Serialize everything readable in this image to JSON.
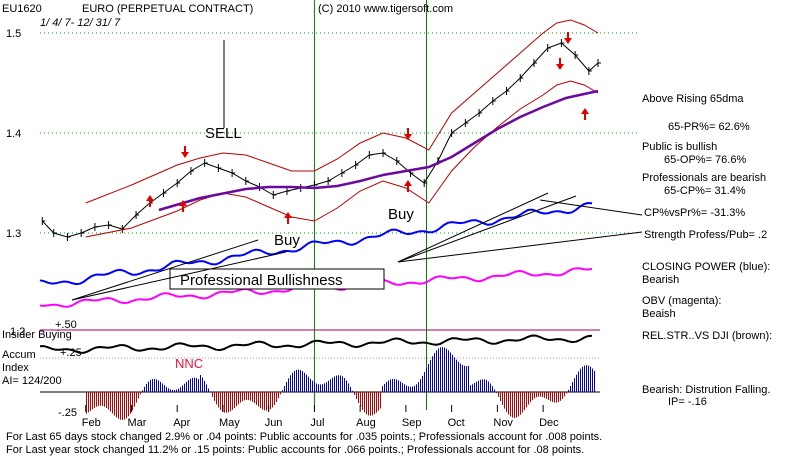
{
  "header": {
    "symbol": "EU1620",
    "name": "EURO  (PERPETUAL CONTRACT)",
    "copyright": "(C) 2010 www.tigersoft.com",
    "date_range": "1/ 4/ 7- 12/ 31/ 7"
  },
  "colors": {
    "price": "#000000",
    "bands": "#b80000",
    "ma65": "#6a0aa0",
    "closing_power": "#0000ff",
    "obv": "#ff00ff",
    "rel_str": "#000000",
    "accum_pos": "#0000c0",
    "accum_neg": "#c00000",
    "signal_green": "#008000",
    "grid": "#00a000",
    "arrow_red": "#e00000"
  },
  "annotations": {
    "sell": "SELL",
    "buy1": "Buy",
    "buy2": "Buy",
    "professional_bullishness": "Professional Bullishness",
    "nnc": "NNC",
    "insider_buying": "Insider Buying",
    "accum_index": [
      "Accum",
      "Index"
    ],
    "ai": "AI= 124/200"
  },
  "right_panel": {
    "above_rising": "Above Rising 65dma",
    "pr": "65-PR%= 62.6%",
    "public_bullish": "Public is bullish",
    "op": "65-OP%= 76.6%",
    "pros_bearish": "Professionals are bearish",
    "cp": "65-CP%= 31.4%",
    "cp_vs_pr": "CP%vsPr%= -31.3%",
    "strength": "Strength Profess/Pub= .2",
    "closing_power": "CLOSING POWER (blue):",
    "closing_power_state": "Bearish",
    "obv": "OBV (magenta):",
    "obv_state": "Beaish",
    "rel_str": "REL.STR..VS DJI (brown):",
    "bearish_dist": "Bearish: Distrution Falling.",
    "ip": "IP= -.16"
  },
  "footer": {
    "line1": "For Last 65 days stock changed  2.9% or  .04 points:  Public accounts for  .035 points.;  Professionals account for  .008 points.",
    "line2": "For Last year stock changed  11.2% or  .15 points:  Public accounts for  .066 points.;  Professionals account for  .08 points."
  },
  "chart_data": {
    "type": "line",
    "x_tick_labels": [
      "Feb",
      "Mar",
      "Apr",
      "May",
      "Jun",
      "Jul",
      "Aug",
      "Sep",
      "Oct",
      "Nov",
      "Dec"
    ],
    "price_axis": {
      "ticks": [
        1.3,
        1.4,
        1.5
      ],
      "tick_labels": [
        "1.3",
        "1.4",
        "1.5"
      ],
      "range": [
        1.25,
        1.52
      ]
    },
    "accum_axis": {
      "ticks": [
        0.5,
        0.25,
        -0.25
      ],
      "tick_labels": [
        "+.50",
        "+.25",
        "-.25"
      ]
    },
    "rel_str_label": "1.2",
    "signals": {
      "sell_month": 4.95,
      "buy_months": [
        6.0,
        8.45
      ]
    },
    "series": [
      {
        "key": "price",
        "x": [
          0.05,
          0.3,
          0.6,
          0.9,
          1.2,
          1.5,
          1.8,
          2.1,
          2.4,
          2.7,
          3.0,
          3.3,
          3.6,
          3.9,
          4.2,
          4.5,
          4.8,
          5.1,
          5.4,
          5.7,
          6.0,
          6.3,
          6.6,
          6.9,
          7.2,
          7.5,
          7.8,
          8.1,
          8.4,
          8.7,
          9.0,
          9.3,
          9.6,
          9.9,
          10.2,
          10.5,
          10.8,
          11.1,
          11.4,
          11.7,
          12.0,
          12.2
        ],
        "y": [
          1.312,
          1.3,
          1.296,
          1.3,
          1.306,
          1.308,
          1.304,
          1.318,
          1.33,
          1.34,
          1.35,
          1.362,
          1.37,
          1.365,
          1.36,
          1.352,
          1.346,
          1.338,
          1.342,
          1.345,
          1.348,
          1.352,
          1.36,
          1.368,
          1.378,
          1.38,
          1.372,
          1.36,
          1.35,
          1.372,
          1.4,
          1.41,
          1.42,
          1.432,
          1.442,
          1.455,
          1.47,
          1.485,
          1.49,
          1.478,
          1.462,
          1.47
        ]
      },
      {
        "key": "upper_band",
        "x": [
          1.0,
          2.0,
          3.0,
          3.5,
          4.0,
          4.5,
          5.0,
          5.5,
          6.0,
          6.5,
          7.0,
          7.5,
          8.0,
          8.5,
          9.0,
          9.5,
          10.0,
          10.5,
          11.0,
          11.3,
          11.6,
          11.9,
          12.2
        ],
        "y": [
          1.33,
          1.348,
          1.368,
          1.375,
          1.38,
          1.378,
          1.37,
          1.362,
          1.362,
          1.374,
          1.39,
          1.4,
          1.395,
          1.383,
          1.42,
          1.44,
          1.46,
          1.48,
          1.5,
          1.51,
          1.513,
          1.508,
          1.5
        ]
      },
      {
        "key": "lower_band",
        "x": [
          1.0,
          2.0,
          3.0,
          3.5,
          4.0,
          4.5,
          5.0,
          5.5,
          6.0,
          6.5,
          7.0,
          7.5,
          8.0,
          8.5,
          9.0,
          9.5,
          10.0,
          10.5,
          11.0,
          11.3,
          11.6,
          11.9,
          12.2
        ],
        "y": [
          1.296,
          1.305,
          1.322,
          1.333,
          1.34,
          1.336,
          1.326,
          1.316,
          1.312,
          1.325,
          1.342,
          1.352,
          1.345,
          1.33,
          1.362,
          1.386,
          1.406,
          1.424,
          1.438,
          1.448,
          1.452,
          1.448,
          1.44
        ]
      },
      {
        "key": "ma65",
        "x": [
          2.6,
          3.5,
          4.5,
          5.0,
          5.5,
          6.0,
          6.5,
          7.0,
          7.5,
          8.0,
          8.5,
          9.0,
          9.5,
          10.0,
          10.5,
          11.0,
          11.5,
          12.2
        ],
        "y": [
          1.323,
          1.335,
          1.344,
          1.346,
          1.346,
          1.345,
          1.347,
          1.352,
          1.358,
          1.362,
          1.366,
          1.376,
          1.39,
          1.404,
          1.416,
          1.426,
          1.435,
          1.442
        ]
      }
    ]
  }
}
